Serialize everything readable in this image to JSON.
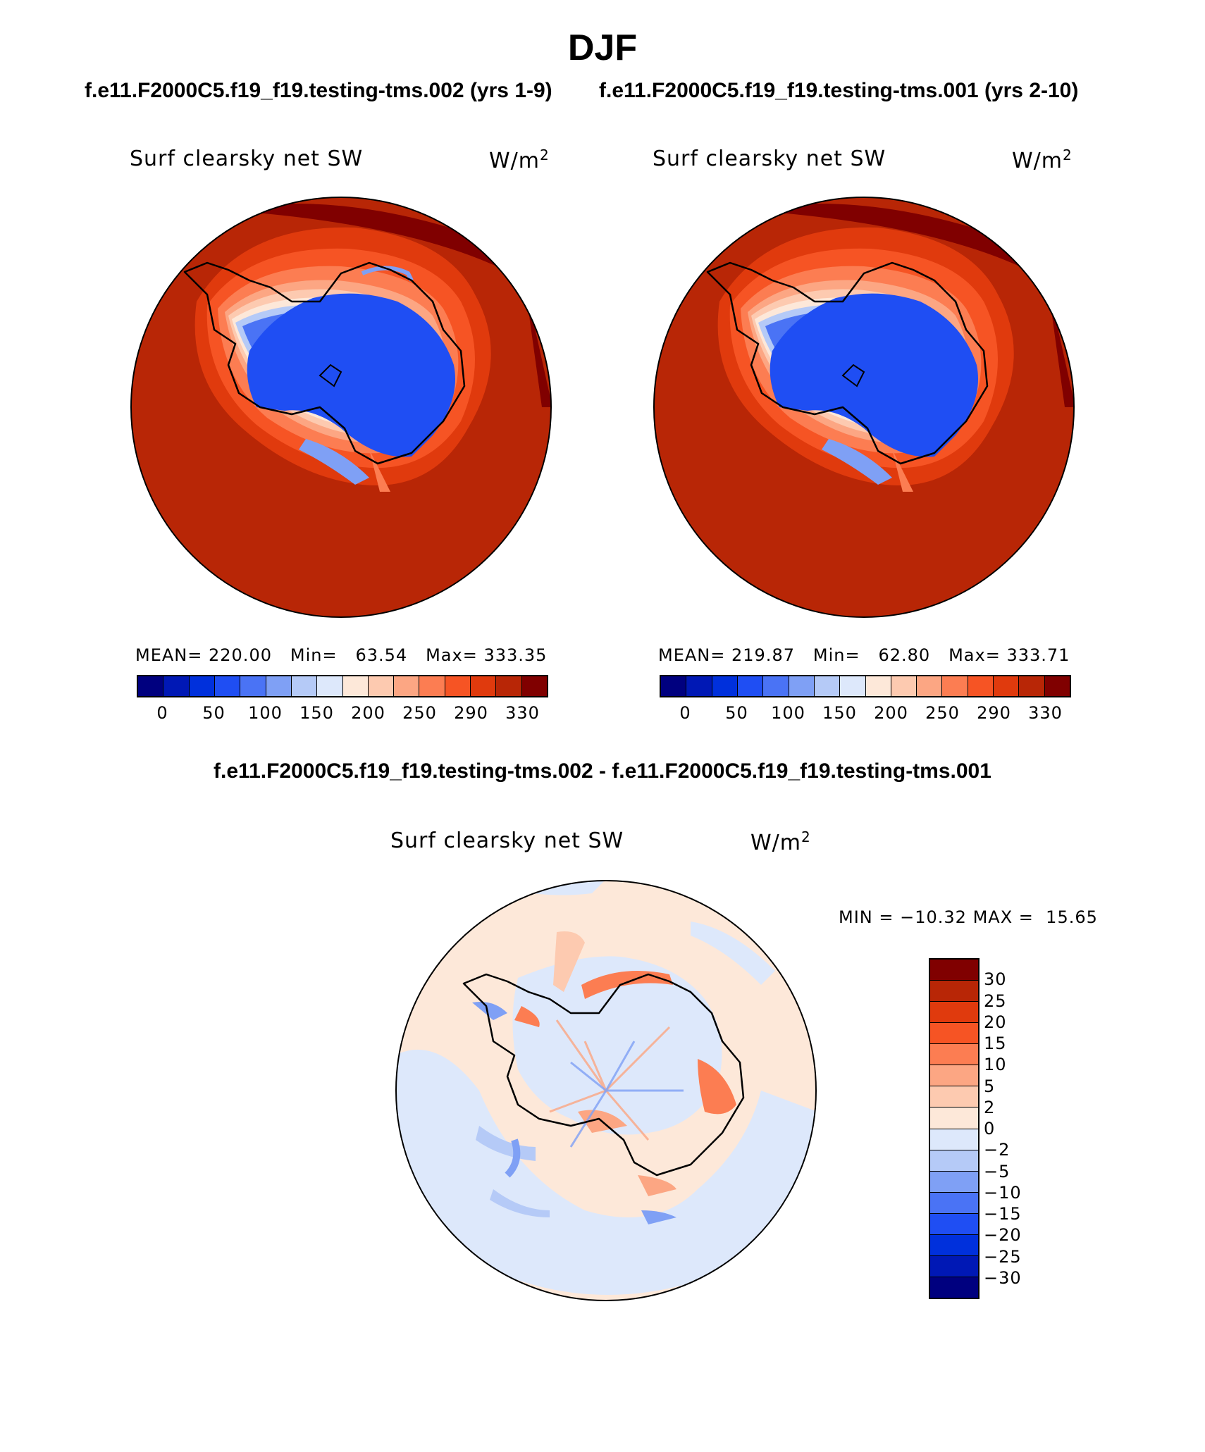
{
  "header": {
    "title": "DJF",
    "run_a": "f.e11.F2000C5.f19_f19.testing-tms.002 (yrs 1-9)",
    "run_b": "f.e11.F2000C5.f19_f19.testing-tms.001 (yrs 2-10)",
    "diff_title": "f.e11.F2000C5.f19_f19.testing-tms.002 - f.e11.F2000C5.f19_f19.testing-tms.001"
  },
  "variable": {
    "name": "Surf clearsky net SW",
    "unit_base": "W/m",
    "unit_exp": "2"
  },
  "panel_a": {
    "mean_label": "MEAN=",
    "mean": "220.00",
    "min_label": "Min=",
    "min": "63.54",
    "max_label": "Max=",
    "max": "333.35"
  },
  "panel_b": {
    "mean_label": "MEAN=",
    "mean": "219.87",
    "min_label": "Min=",
    "min": "62.80",
    "max_label": "Max=",
    "max": "333.71"
  },
  "panel_diff": {
    "min_label": "MIN =",
    "min": "−10.32",
    "max_label": "MAX =",
    "max": "15.65"
  },
  "field_colorbar": {
    "ticks": [
      "0",
      "50",
      "100",
      "150",
      "200",
      "250",
      "290",
      "330"
    ],
    "colors": [
      "#00007f",
      "#0018b5",
      "#0030dc",
      "#1f4ef3",
      "#4a73f5",
      "#7fa0f5",
      "#b5caf7",
      "#dde8fb",
      "#fde8d9",
      "#fdcab0",
      "#fca683",
      "#fc7d52",
      "#f65424",
      "#e03a0d",
      "#b82606",
      "#800000"
    ]
  },
  "diff_colorbar": {
    "ticks": [
      "30",
      "25",
      "20",
      "15",
      "10",
      "5",
      "2",
      "0",
      "−2",
      "−5",
      "−10",
      "−15",
      "−20",
      "−25",
      "−30"
    ],
    "colors": [
      "#800000",
      "#b82606",
      "#e03a0d",
      "#f65424",
      "#fc7d52",
      "#fca683",
      "#fdcab0",
      "#fde8d9",
      "#dde8fb",
      "#b5caf7",
      "#7fa0f5",
      "#4a73f5",
      "#1f4ef3",
      "#0030dc",
      "#0018b5",
      "#00007f"
    ]
  }
}
